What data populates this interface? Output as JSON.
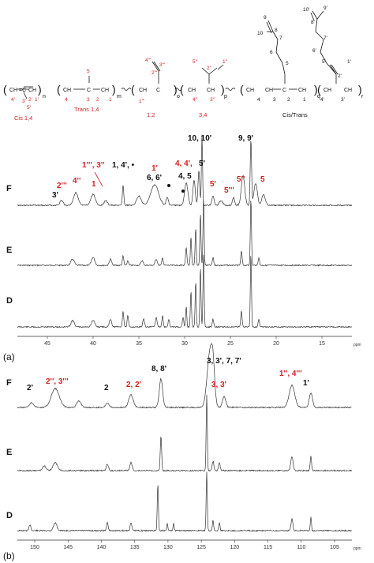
{
  "colors": {
    "black": "#111111",
    "red": "#d42020",
    "trace": "#333333"
  },
  "structure": {
    "units": [
      {
        "name": "Cis 1,4",
        "atoms": [
          "4'",
          "3'",
          "2'",
          "1'",
          "5'"
        ],
        "subscript": "n"
      },
      {
        "name": "Trans 1,4",
        "atoms": [
          "4",
          "3",
          "2",
          "1",
          "5"
        ],
        "subscript": "m"
      },
      {
        "name": "1,2",
        "atoms": [
          "1'''",
          "2'''",
          "3'''",
          "4'''"
        ],
        "subscript": "o"
      },
      {
        "name": "3,4",
        "atoms": [
          "4''",
          "3''",
          "2''",
          "1''",
          "5''"
        ],
        "subscript": "p"
      },
      {
        "name": "Cis/Trans",
        "atoms": [
          "4",
          "3",
          "2",
          "1",
          "4'",
          "3'",
          "2'",
          "1'"
        ],
        "subscript": "q"
      }
    ],
    "geranyl": [
      "10",
      "8",
      "9",
      "7",
      "6",
      "5",
      "10'",
      "8'",
      "9'",
      "7'",
      "6'",
      "5'"
    ],
    "groups": {
      "ch2": "CH",
      "sub2": "2",
      "ch": "CH",
      "c": "C",
      "eq": "=",
      "last_sub": "r"
    }
  },
  "panel_a": {
    "label": "(a)",
    "xaxis": {
      "ticks": [
        "45",
        "40",
        "35",
        "30",
        "25",
        "20",
        "15"
      ],
      "unit": "ppm"
    },
    "traces": [
      "F",
      "E",
      "D"
    ],
    "annotations": [
      {
        "text": "2'''",
        "color": "red"
      },
      {
        "text": "4''",
        "color": "red"
      },
      {
        "text": "1''', 3''",
        "color": "red"
      },
      {
        "text": "1",
        "color": "red"
      },
      {
        "text": "3'",
        "color": "black"
      },
      {
        "text": "1, 4', •",
        "color": "black"
      },
      {
        "text": "1'",
        "color": "red"
      },
      {
        "text": "6, 6'",
        "color": "black"
      },
      {
        "text": "4, 4',",
        "color": "red"
      },
      {
        "text": "5'",
        "color": "black"
      },
      {
        "text": "4, 5",
        "color": "black"
      },
      {
        "text": "10, 10'",
        "color": "black"
      },
      {
        "text": "9, 9'",
        "color": "black"
      },
      {
        "text": "5'",
        "color": "red"
      },
      {
        "text": "5'''",
        "color": "red"
      },
      {
        "text": "5''",
        "color": "red"
      },
      {
        "text": "5",
        "color": "red"
      }
    ]
  },
  "panel_b": {
    "label": "(b)",
    "xaxis": {
      "ticks": [
        "150",
        "145",
        "140",
        "135",
        "130",
        "125",
        "120",
        "115",
        "110",
        "105"
      ],
      "unit": "ppm"
    },
    "traces": [
      "F",
      "E",
      "D"
    ],
    "annotations": [
      {
        "text": "2'",
        "color": "black"
      },
      {
        "text": "2'', 3'''",
        "color": "red"
      },
      {
        "text": "2",
        "color": "black"
      },
      {
        "text": "2, 2'",
        "color": "red"
      },
      {
        "text": "8, 8'",
        "color": "black"
      },
      {
        "text": "3, 3', 7, 7'",
        "color": "black"
      },
      {
        "text": "3, 3'",
        "color": "red"
      },
      {
        "text": "1'', 4'''",
        "color": "red"
      },
      {
        "text": "1'",
        "color": "black"
      }
    ]
  }
}
